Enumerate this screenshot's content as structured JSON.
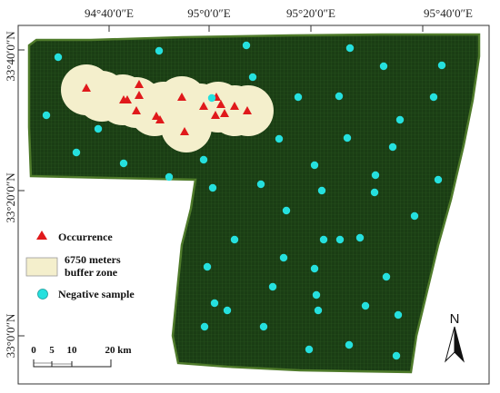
{
  "axes": {
    "top_ticks": [
      "94°40′0″E",
      "95°0′0″E",
      "95°20′0″E",
      "95°40′0″E"
    ],
    "left_ticks": [
      "33°40′0″N",
      "33°20′0″N",
      "33°0′0″N"
    ]
  },
  "legend": {
    "occurrence_label": "Occurrence",
    "buffer_label_line1": "6750 meters",
    "buffer_label_line2": "buffer zone",
    "negative_label": "Negative sample"
  },
  "scale_bar": {
    "labels": [
      "0",
      "5",
      "10",
      "20 km"
    ]
  },
  "north_arrow": {
    "label": "N"
  },
  "colors": {
    "study_area": "#1a3d14",
    "study_area_edge": "#4e7a2a",
    "buffer_zone": "#f4efcc",
    "occurrence": "#e0191b",
    "negative_sample": "#25e0de"
  },
  "occurrences_count": 18,
  "negative_samples_count": 52
}
